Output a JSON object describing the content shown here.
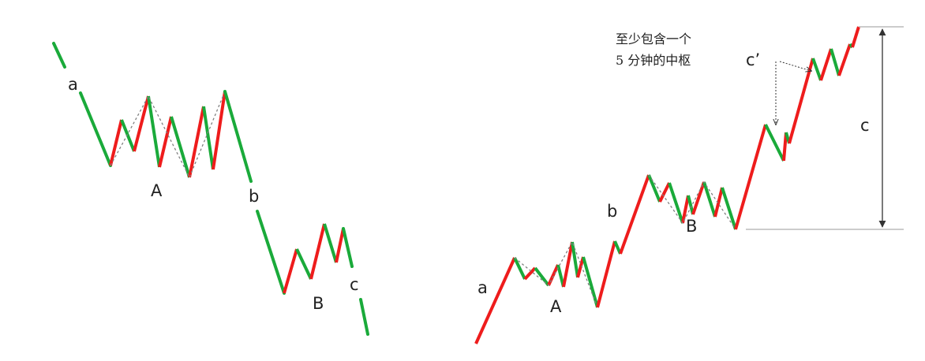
{
  "colors": {
    "up": "#ee1c1c",
    "down": "#1aaa3a",
    "dotted": "#808080",
    "arrow": "#333333",
    "baseline": "#bbbbbb"
  },
  "left_diagram": {
    "labels": {
      "a": "a",
      "A": "A",
      "b": "b",
      "B": "B",
      "c": "c"
    }
  },
  "right_diagram": {
    "labels": {
      "a": "a",
      "A": "A",
      "b": "b",
      "B": "B",
      "c_prime": "c’",
      "c": "c"
    },
    "annotation": [
      "至少包含一个",
      "5 分钟的中枢"
    ]
  }
}
